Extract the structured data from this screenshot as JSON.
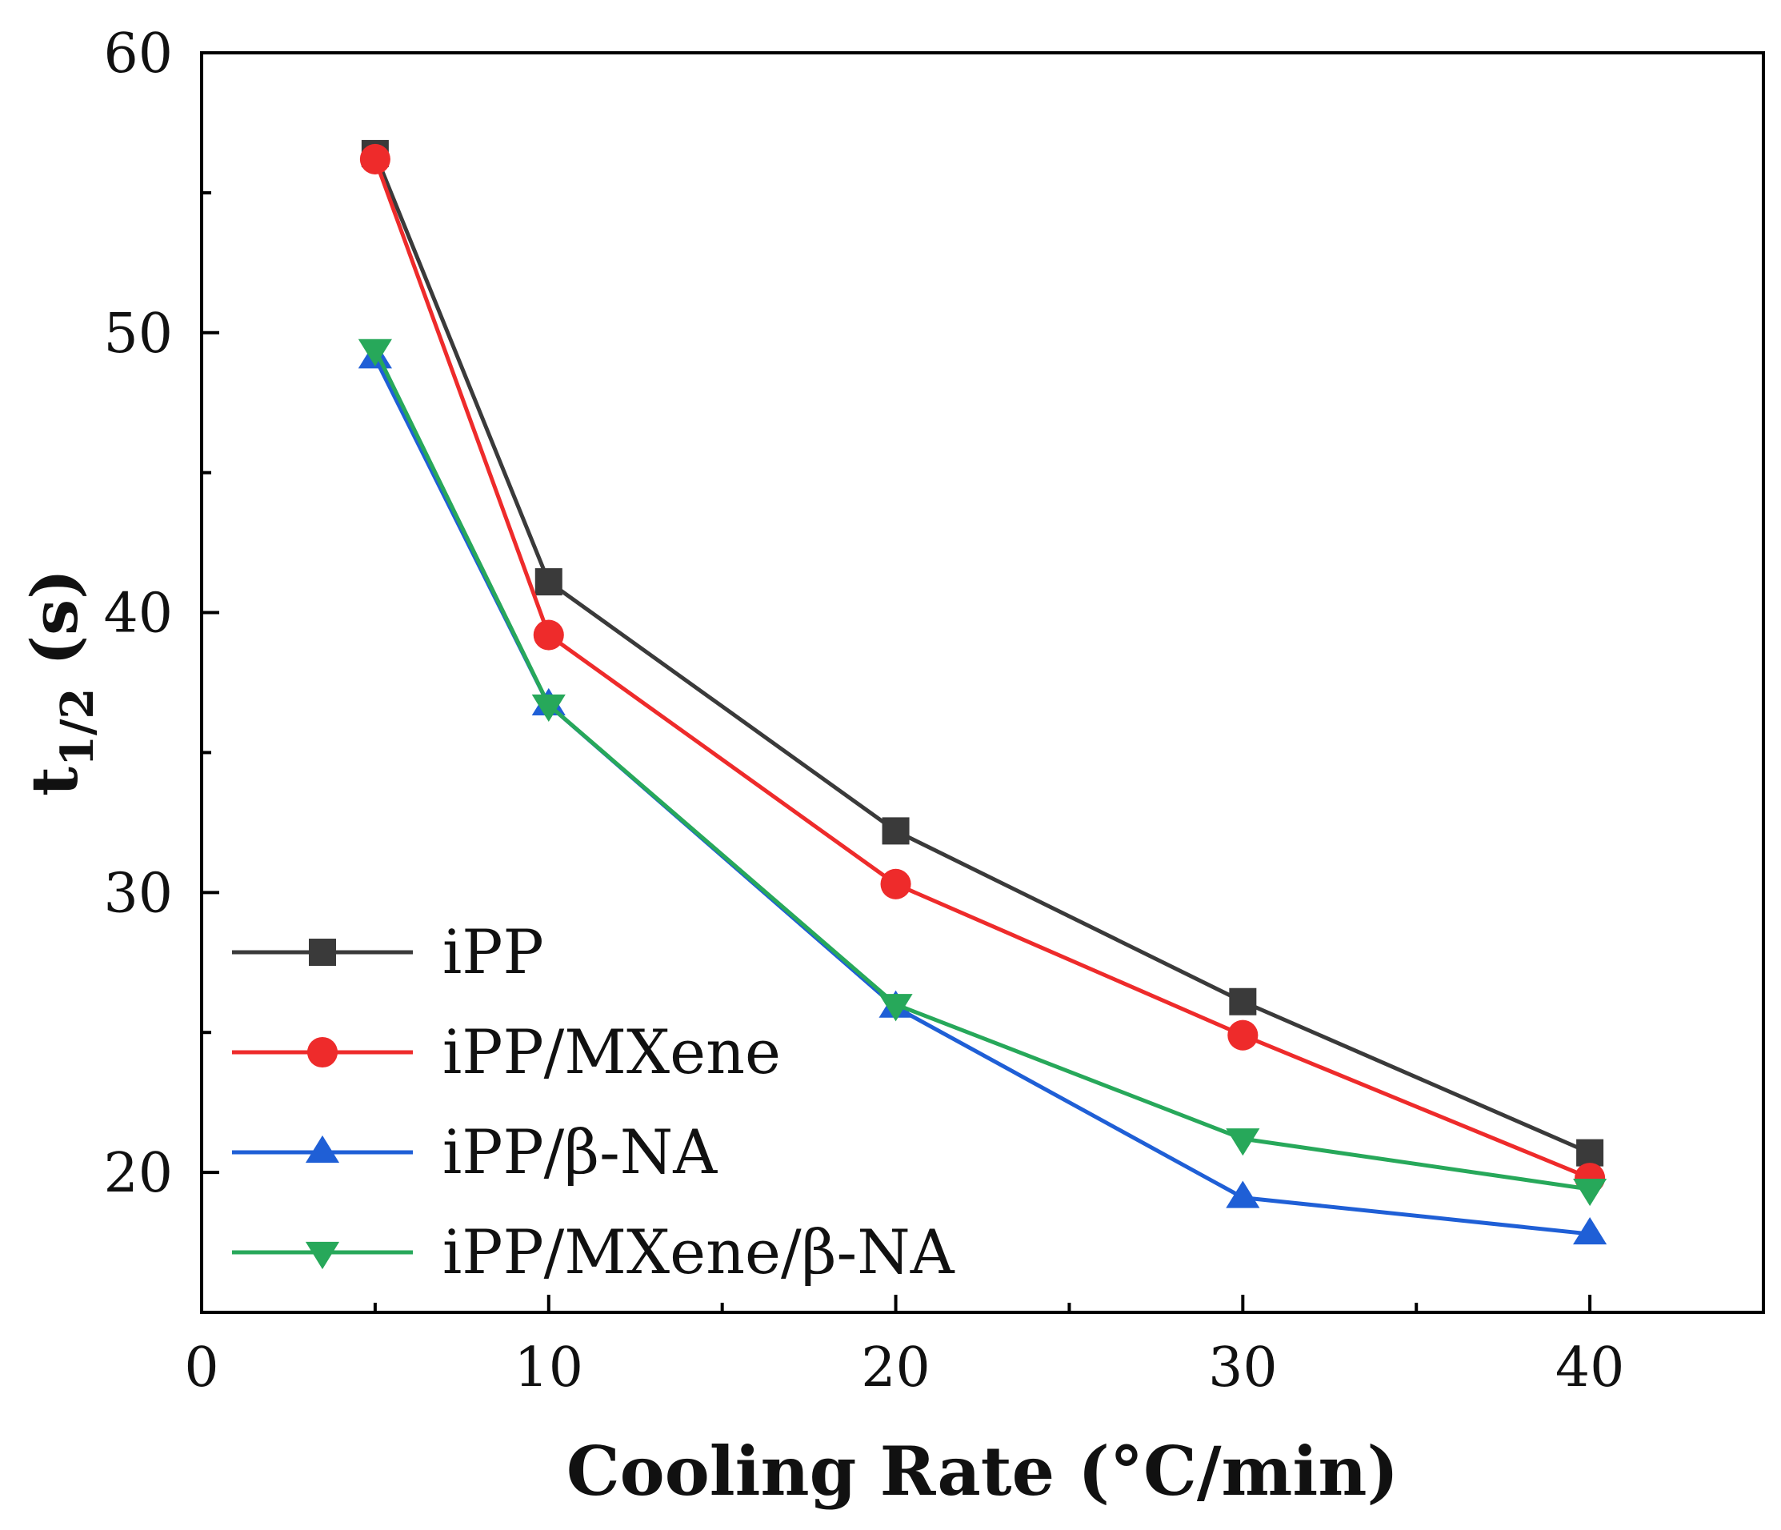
{
  "chart_data": {
    "type": "line",
    "title": "",
    "xlabel": "Cooling Rate (°C/min)",
    "ylabel_main": "t",
    "ylabel_sub": "1/2",
    "ylabel_unit": " (s)",
    "xlim": [
      0,
      45
    ],
    "ylim": [
      15,
      60
    ],
    "xticks": [
      0,
      10,
      20,
      30,
      40
    ],
    "xtick_labels": [
      "0",
      "10",
      "20",
      "30",
      "40"
    ],
    "xminor": [
      5,
      15,
      25,
      35
    ],
    "yticks": [
      20,
      30,
      40,
      50,
      60
    ],
    "ytick_labels": [
      "20",
      "30",
      "40",
      "50",
      "60"
    ],
    "yminor": [
      25,
      35,
      45,
      55
    ],
    "grid": false,
    "legend_position": "lower-left",
    "x": [
      5,
      10,
      20,
      30,
      40
    ],
    "series": [
      {
        "name": "iPP",
        "color": "#3a3a3a",
        "marker": "square",
        "values": [
          56.4,
          41.1,
          32.2,
          26.1,
          20.7
        ]
      },
      {
        "name": "iPP/MXene",
        "color": "#ee2b2b",
        "marker": "circle",
        "values": [
          56.2,
          39.2,
          30.3,
          24.9,
          19.8
        ]
      },
      {
        "name": "iPP/β-NA",
        "color": "#1f5fd6",
        "marker": "triangle-up",
        "values": [
          49.1,
          36.7,
          25.9,
          19.1,
          17.8
        ]
      },
      {
        "name": "iPP/MXene/β-NA",
        "color": "#27a85a",
        "marker": "triangle-down",
        "values": [
          49.4,
          36.7,
          26.0,
          21.2,
          19.4
        ]
      }
    ]
  }
}
